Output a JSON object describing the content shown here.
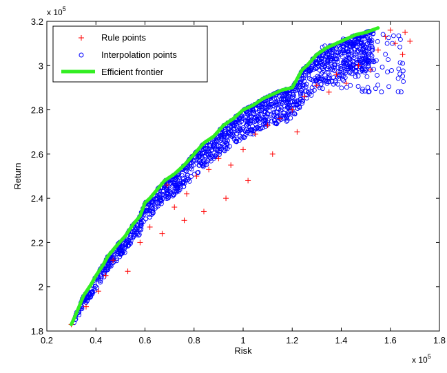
{
  "chart_data": {
    "type": "scatter",
    "title": "",
    "xlabel": "Risk",
    "ylabel": "Return",
    "x_exponent": "x 10",
    "y_exponent": "x 10",
    "exponent_power": "5",
    "xlim": [
      0.2,
      1.8
    ],
    "ylim": [
      1.8,
      3.2
    ],
    "x_ticks": [
      0.2,
      0.4,
      0.6,
      0.8,
      1,
      1.2,
      1.4,
      1.6,
      1.8
    ],
    "x_tick_labels": [
      "0.2",
      "0.4",
      "0.6",
      "0.8",
      "1",
      "1.2",
      "1.4",
      "1.6",
      "1.8"
    ],
    "y_ticks": [
      1.8,
      2,
      2.2,
      2.4,
      2.6,
      2.8,
      3,
      3.2
    ],
    "y_tick_labels": [
      "1.8",
      "2",
      "2.2",
      "2.4",
      "2.6",
      "2.8",
      "3",
      "3.2"
    ],
    "grid": false,
    "legend_position": "top-left",
    "series": [
      {
        "name": "Rule points",
        "marker": "plus",
        "color": "#ff0000",
        "x": [
          0.3,
          0.36,
          0.41,
          0.44,
          0.47,
          0.53,
          0.58,
          0.62,
          0.67,
          0.72,
          0.77,
          0.81,
          0.86,
          0.9,
          0.95,
          1.0,
          1.05,
          1.1,
          1.15,
          1.2,
          1.25,
          1.3,
          1.35,
          1.38,
          1.42,
          1.47,
          1.52,
          1.55,
          1.58,
          1.62,
          1.65,
          1.68,
          0.84,
          0.93,
          1.02,
          1.12,
          1.22,
          0.76,
          0.69,
          1.6,
          1.66
        ],
        "y": [
          1.83,
          1.91,
          1.98,
          2.05,
          2.12,
          2.07,
          2.2,
          2.27,
          2.24,
          2.36,
          2.42,
          2.5,
          2.53,
          2.58,
          2.55,
          2.62,
          2.69,
          2.73,
          2.76,
          2.8,
          2.86,
          2.91,
          2.88,
          2.96,
          2.92,
          3.0,
          2.98,
          3.07,
          3.13,
          3.1,
          3.05,
          3.11,
          2.34,
          2.4,
          2.48,
          2.6,
          2.7,
          2.3,
          2.46,
          3.16,
          3.15
        ]
      },
      {
        "name": "Interpolation points",
        "marker": "circle",
        "color": "#0000ff",
        "x": [],
        "y": []
      },
      {
        "name": "Efficient frontier",
        "marker": "line",
        "color": "#33ee22",
        "x": [
          0.3,
          0.32,
          0.35,
          0.38,
          0.4,
          0.43,
          0.45,
          0.48,
          0.52,
          0.55,
          0.58,
          0.6,
          0.62,
          0.65,
          0.68,
          0.72,
          0.76,
          0.8,
          0.84,
          0.88,
          0.92,
          0.96,
          1.0,
          1.04,
          1.08,
          1.12,
          1.16,
          1.2,
          1.24,
          1.26,
          1.3,
          1.34,
          1.38,
          1.42,
          1.46,
          1.5,
          1.55
        ],
        "y": [
          1.83,
          1.88,
          1.96,
          2.01,
          2.05,
          2.1,
          2.14,
          2.18,
          2.23,
          2.28,
          2.32,
          2.38,
          2.4,
          2.44,
          2.48,
          2.51,
          2.55,
          2.6,
          2.65,
          2.68,
          2.73,
          2.76,
          2.8,
          2.82,
          2.85,
          2.87,
          2.89,
          2.9,
          2.98,
          3.0,
          3.05,
          3.08,
          3.1,
          3.12,
          3.14,
          3.15,
          3.17
        ]
      }
    ]
  }
}
